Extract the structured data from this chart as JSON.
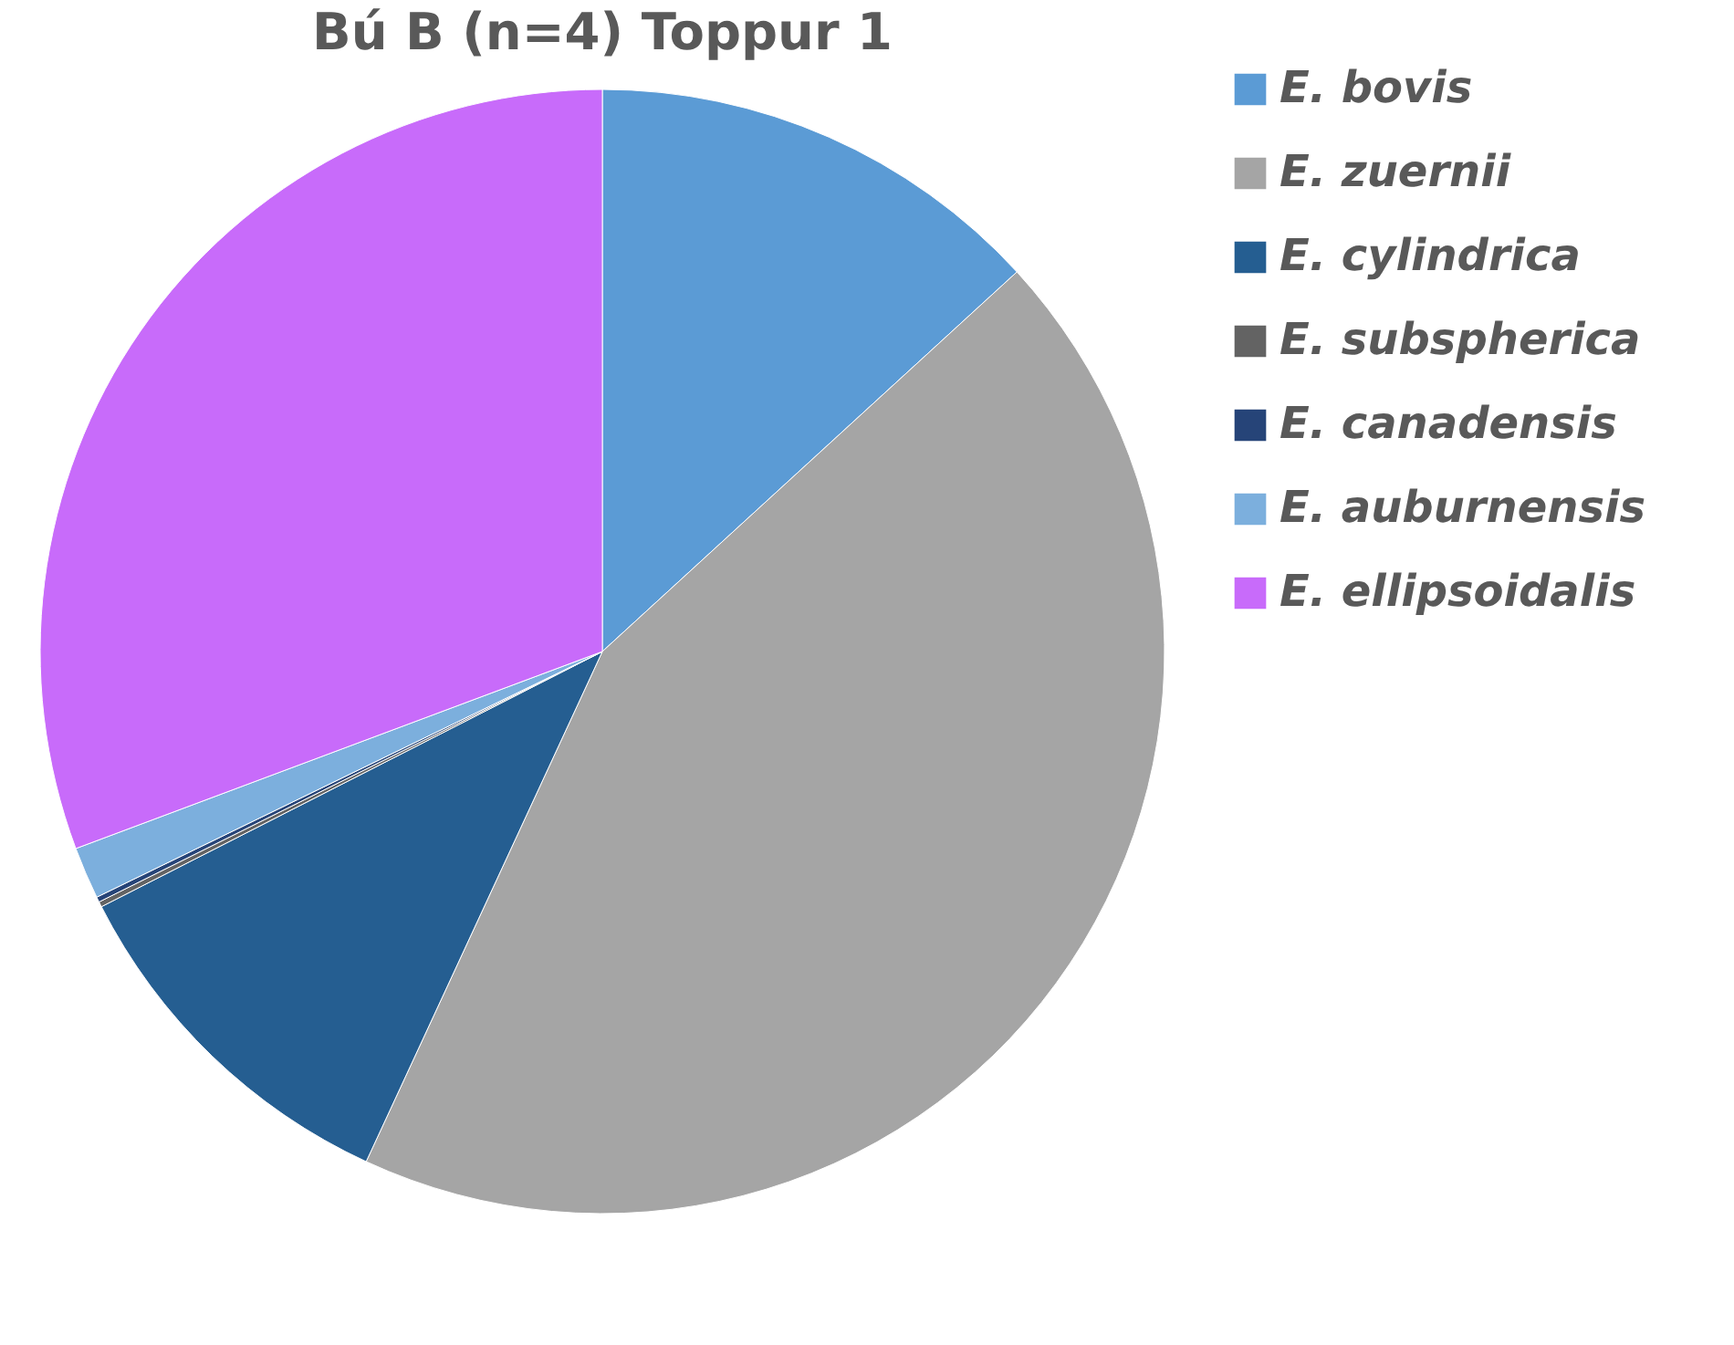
{
  "chart_data": {
    "type": "pie",
    "title": "Bú B (n=4) Toppur 1",
    "categories": [
      "E. bovis",
      "E. zuernii",
      "E. cylindrica",
      "E. subspherica",
      "E. canadensis",
      "E. auburnensis",
      "E. ellipsoidalis"
    ],
    "values": [
      13.2,
      43.7,
      10.6,
      0.15,
      0.15,
      1.5,
      30.7
    ],
    "colors": [
      "#5b9bd5",
      "#a5a5a5",
      "#255e91",
      "#636363",
      "#264478",
      "#7cafdd",
      "#c86bfa"
    ],
    "legend": "right"
  }
}
